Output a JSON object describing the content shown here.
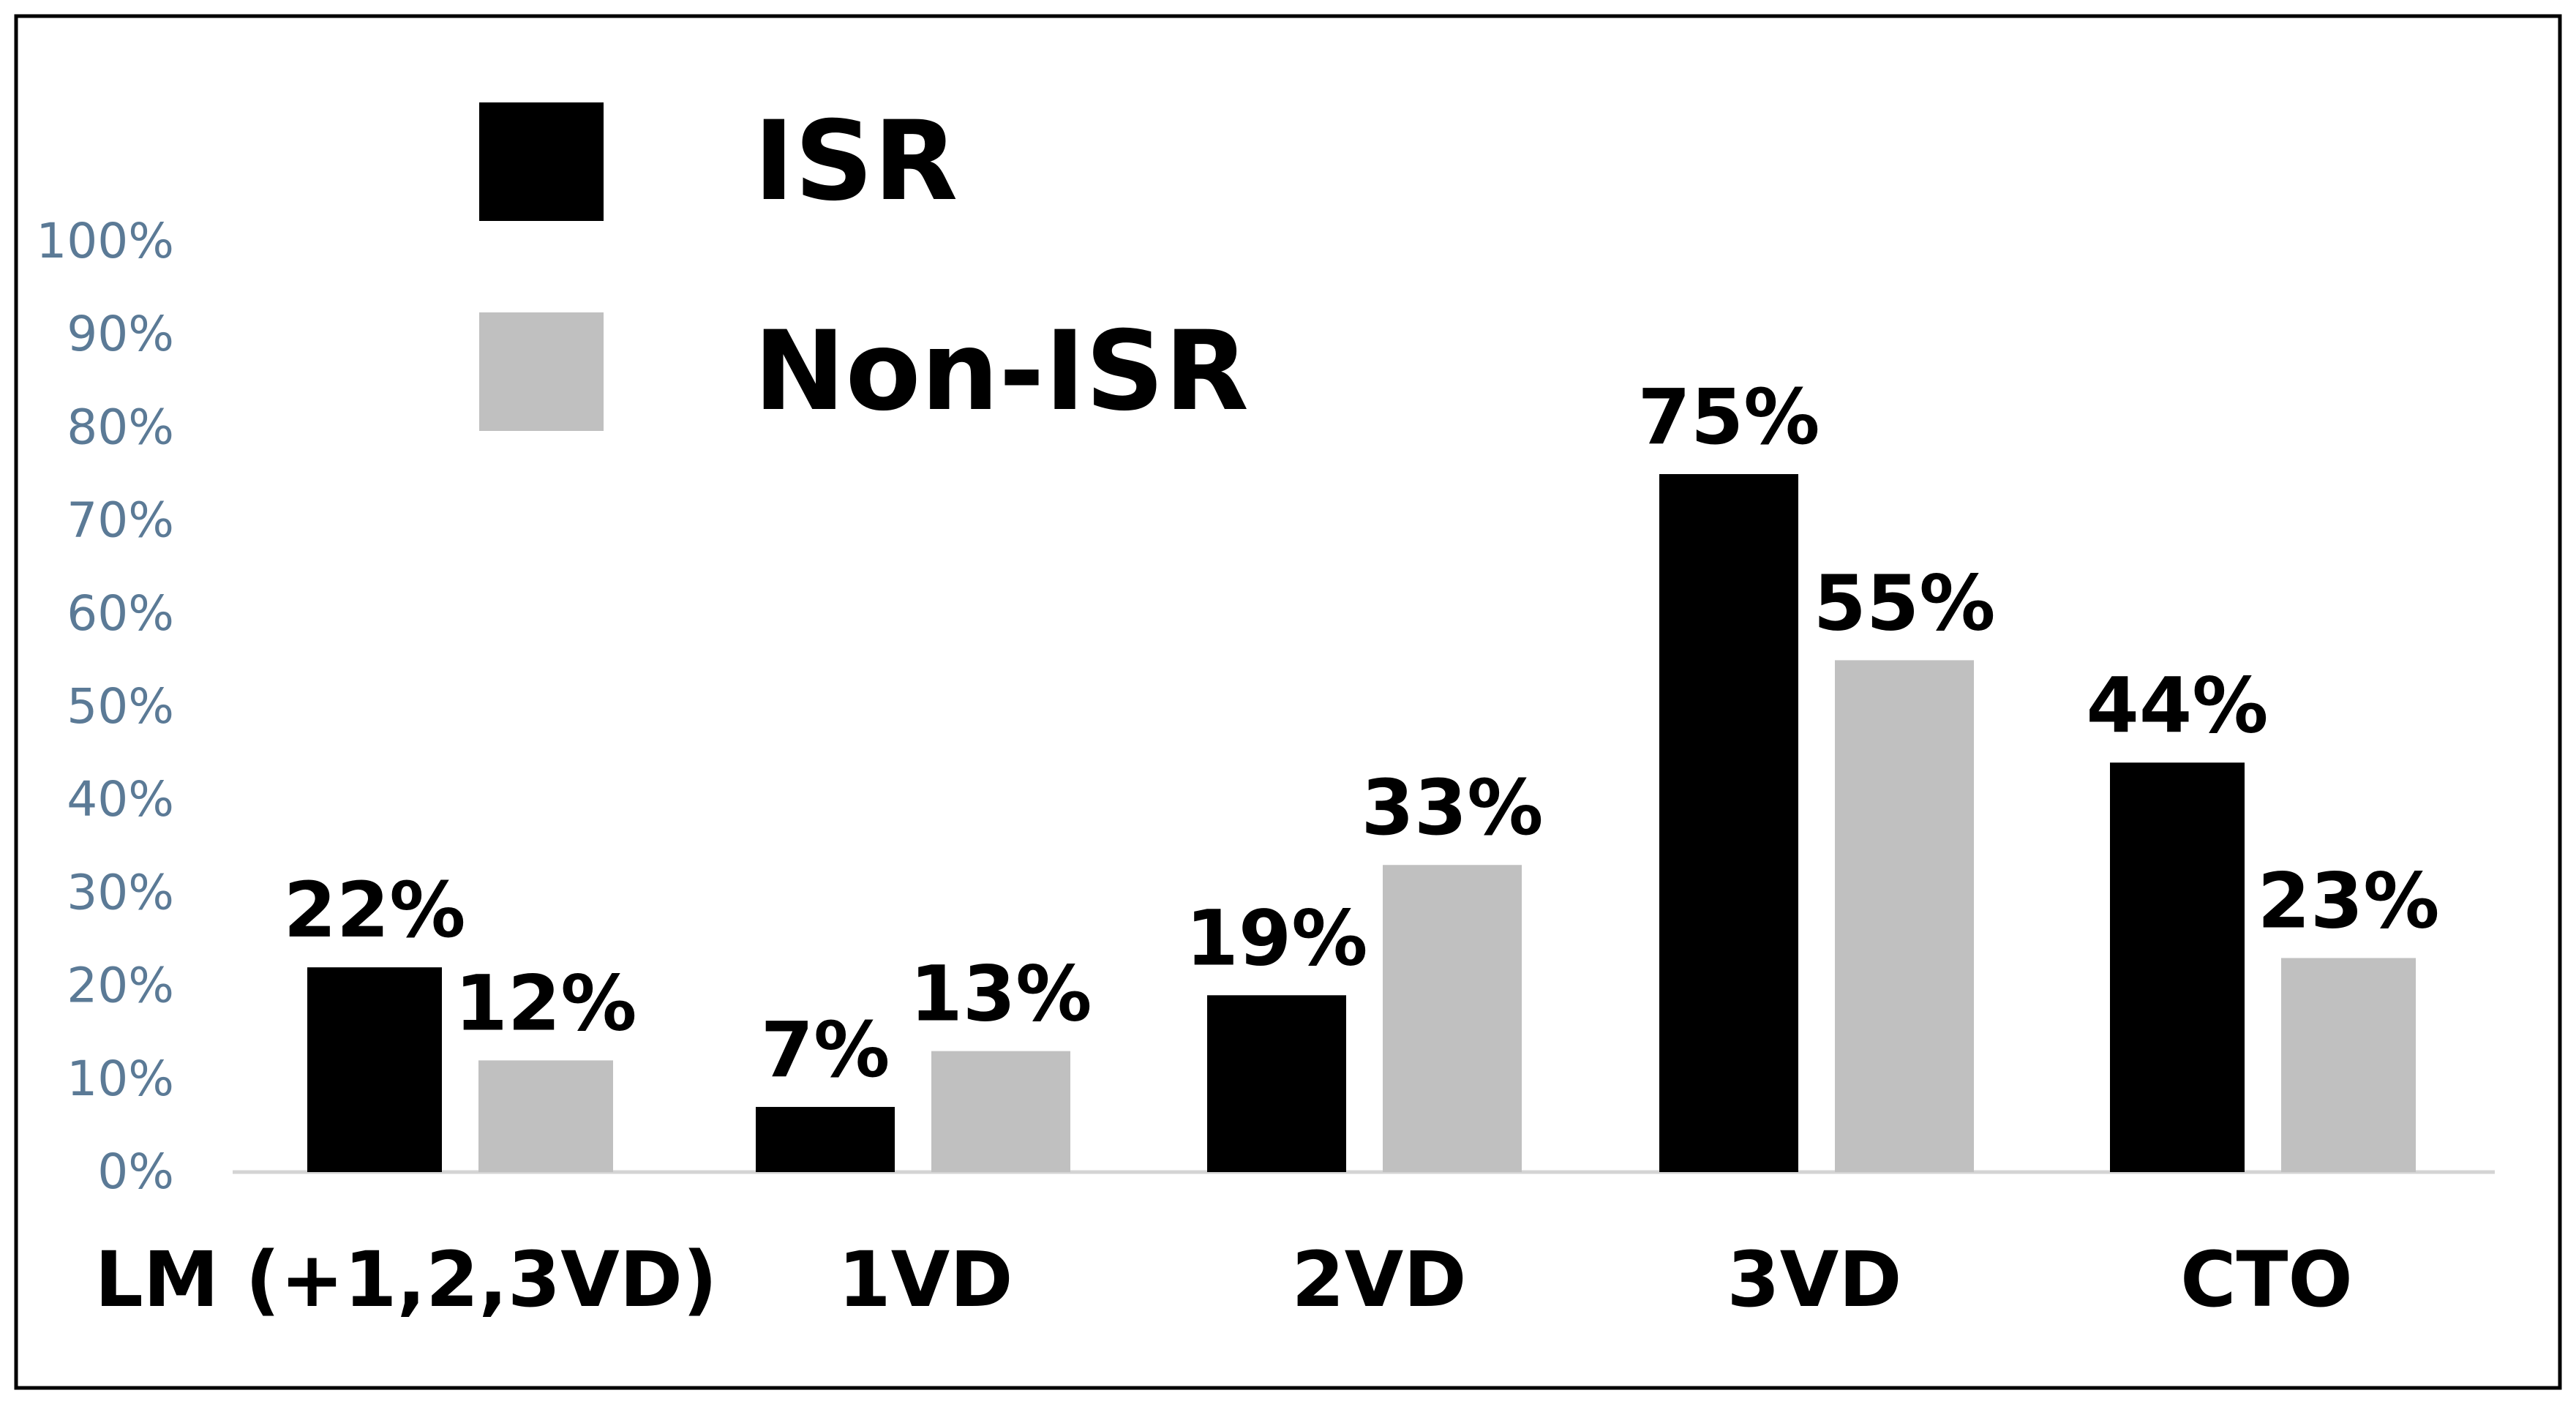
{
  "chart_data": {
    "type": "bar",
    "categories": [
      "LM (+1,2,3VD)",
      "1VD",
      "2VD",
      "3VD",
      "CTO"
    ],
    "series": [
      {
        "name": "ISR",
        "color": "#000000",
        "values": [
          22,
          7,
          19,
          75,
          44
        ],
        "labels": [
          "22%",
          "7%",
          "19%",
          "75%",
          "44%"
        ]
      },
      {
        "name": "Non-ISR",
        "color": "#c0c0c0",
        "values": [
          12,
          13,
          33,
          55,
          23
        ],
        "labels": [
          "12%",
          "13%",
          "33%",
          "55%",
          "23%"
        ]
      }
    ],
    "ylim": [
      0,
      100
    ],
    "yticks": [
      0,
      10,
      20,
      30,
      40,
      50,
      60,
      70,
      80,
      90,
      100
    ],
    "ytick_labels": [
      "0%",
      "10%",
      "20%",
      "30%",
      "40%",
      "50%",
      "60%",
      "70%",
      "80%",
      "90%",
      "100%"
    ],
    "grid": false,
    "legend": "top-left",
    "title": "",
    "xlabel": "",
    "ylabel": ""
  }
}
